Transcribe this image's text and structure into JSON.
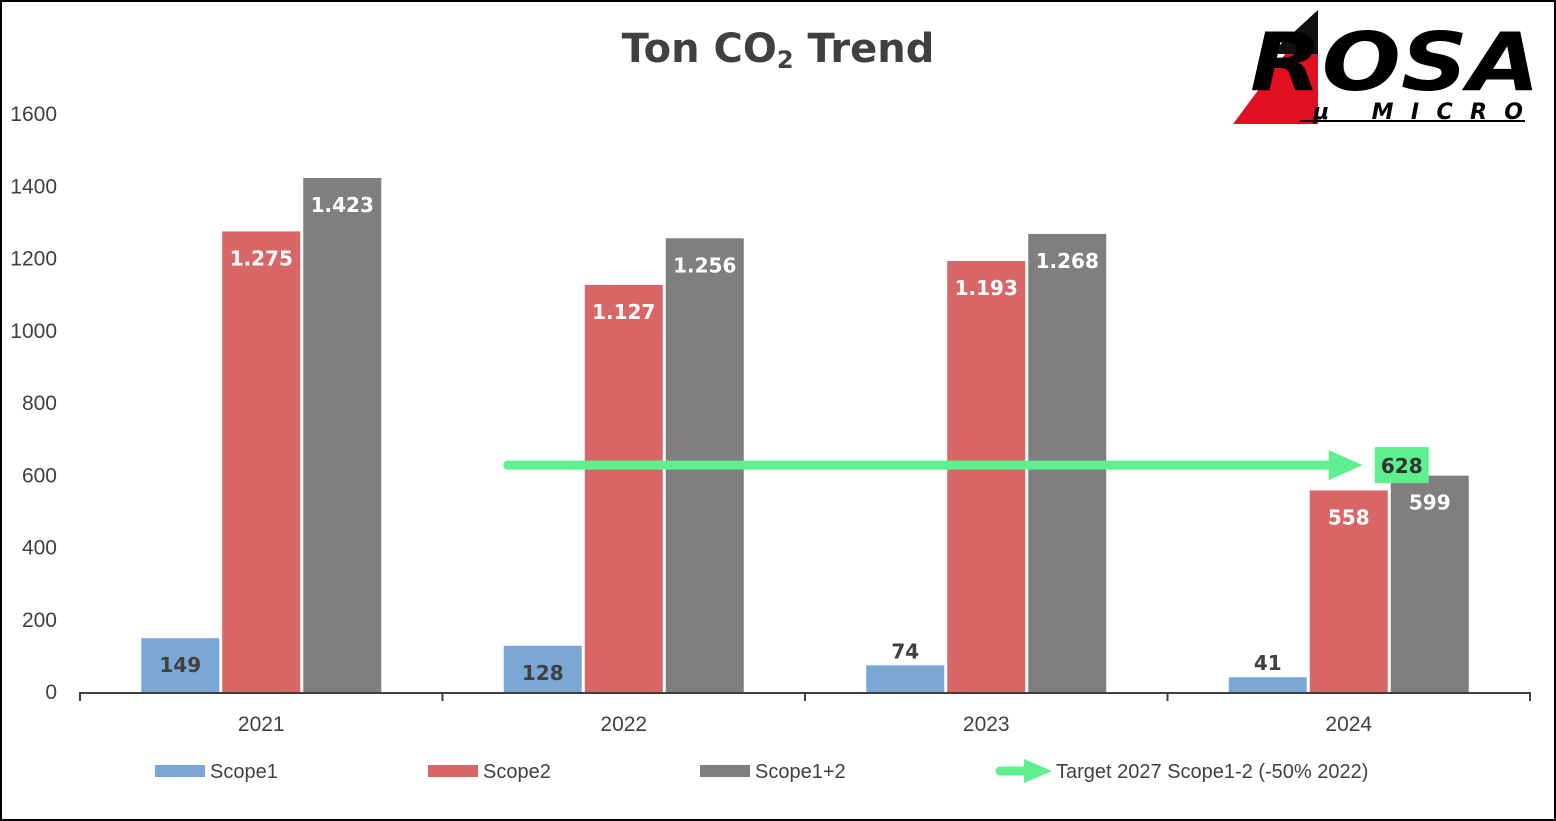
{
  "chart_data": {
    "type": "bar",
    "title_main": "Ton CO",
    "title_sub": "2",
    "title_end": " Trend",
    "categories": [
      "2021",
      "2022",
      "2023",
      "2024"
    ],
    "series": [
      {
        "name": "Scope1",
        "values": [
          149,
          128,
          74,
          41
        ],
        "labels": [
          "149",
          "128",
          "74",
          "41"
        ],
        "color": "#7BA7D6",
        "label_color": "#404040"
      },
      {
        "name": "Scope2",
        "values": [
          1275,
          1127,
          1193,
          558
        ],
        "labels": [
          "1.275",
          "1.127",
          "1.193",
          "558"
        ],
        "color": "#D96666",
        "label_color": "#ffffff"
      },
      {
        "name": "Scope1+2",
        "values": [
          1423,
          1256,
          1268,
          599
        ],
        "labels": [
          "1.423",
          "1.256",
          "1.268",
          "599"
        ],
        "color": "#7F7F7F",
        "label_color": "#ffffff"
      }
    ],
    "yticks": [
      "0",
      "200",
      "400",
      "600",
      "800",
      "1000",
      "1200",
      "1400",
      "1600"
    ],
    "ylim": [
      0,
      1600
    ],
    "target": {
      "name": "Target 2027 Scope1-2 (-50% 2022)",
      "value": 628,
      "label": "628",
      "from_category": "2022",
      "to_category": "2024",
      "color": "#5EF08E"
    }
  },
  "logo": {
    "name": "ROSA",
    "sub": "μ  MICRO"
  },
  "colors": {
    "axis": "#404040",
    "text": "#404040"
  }
}
